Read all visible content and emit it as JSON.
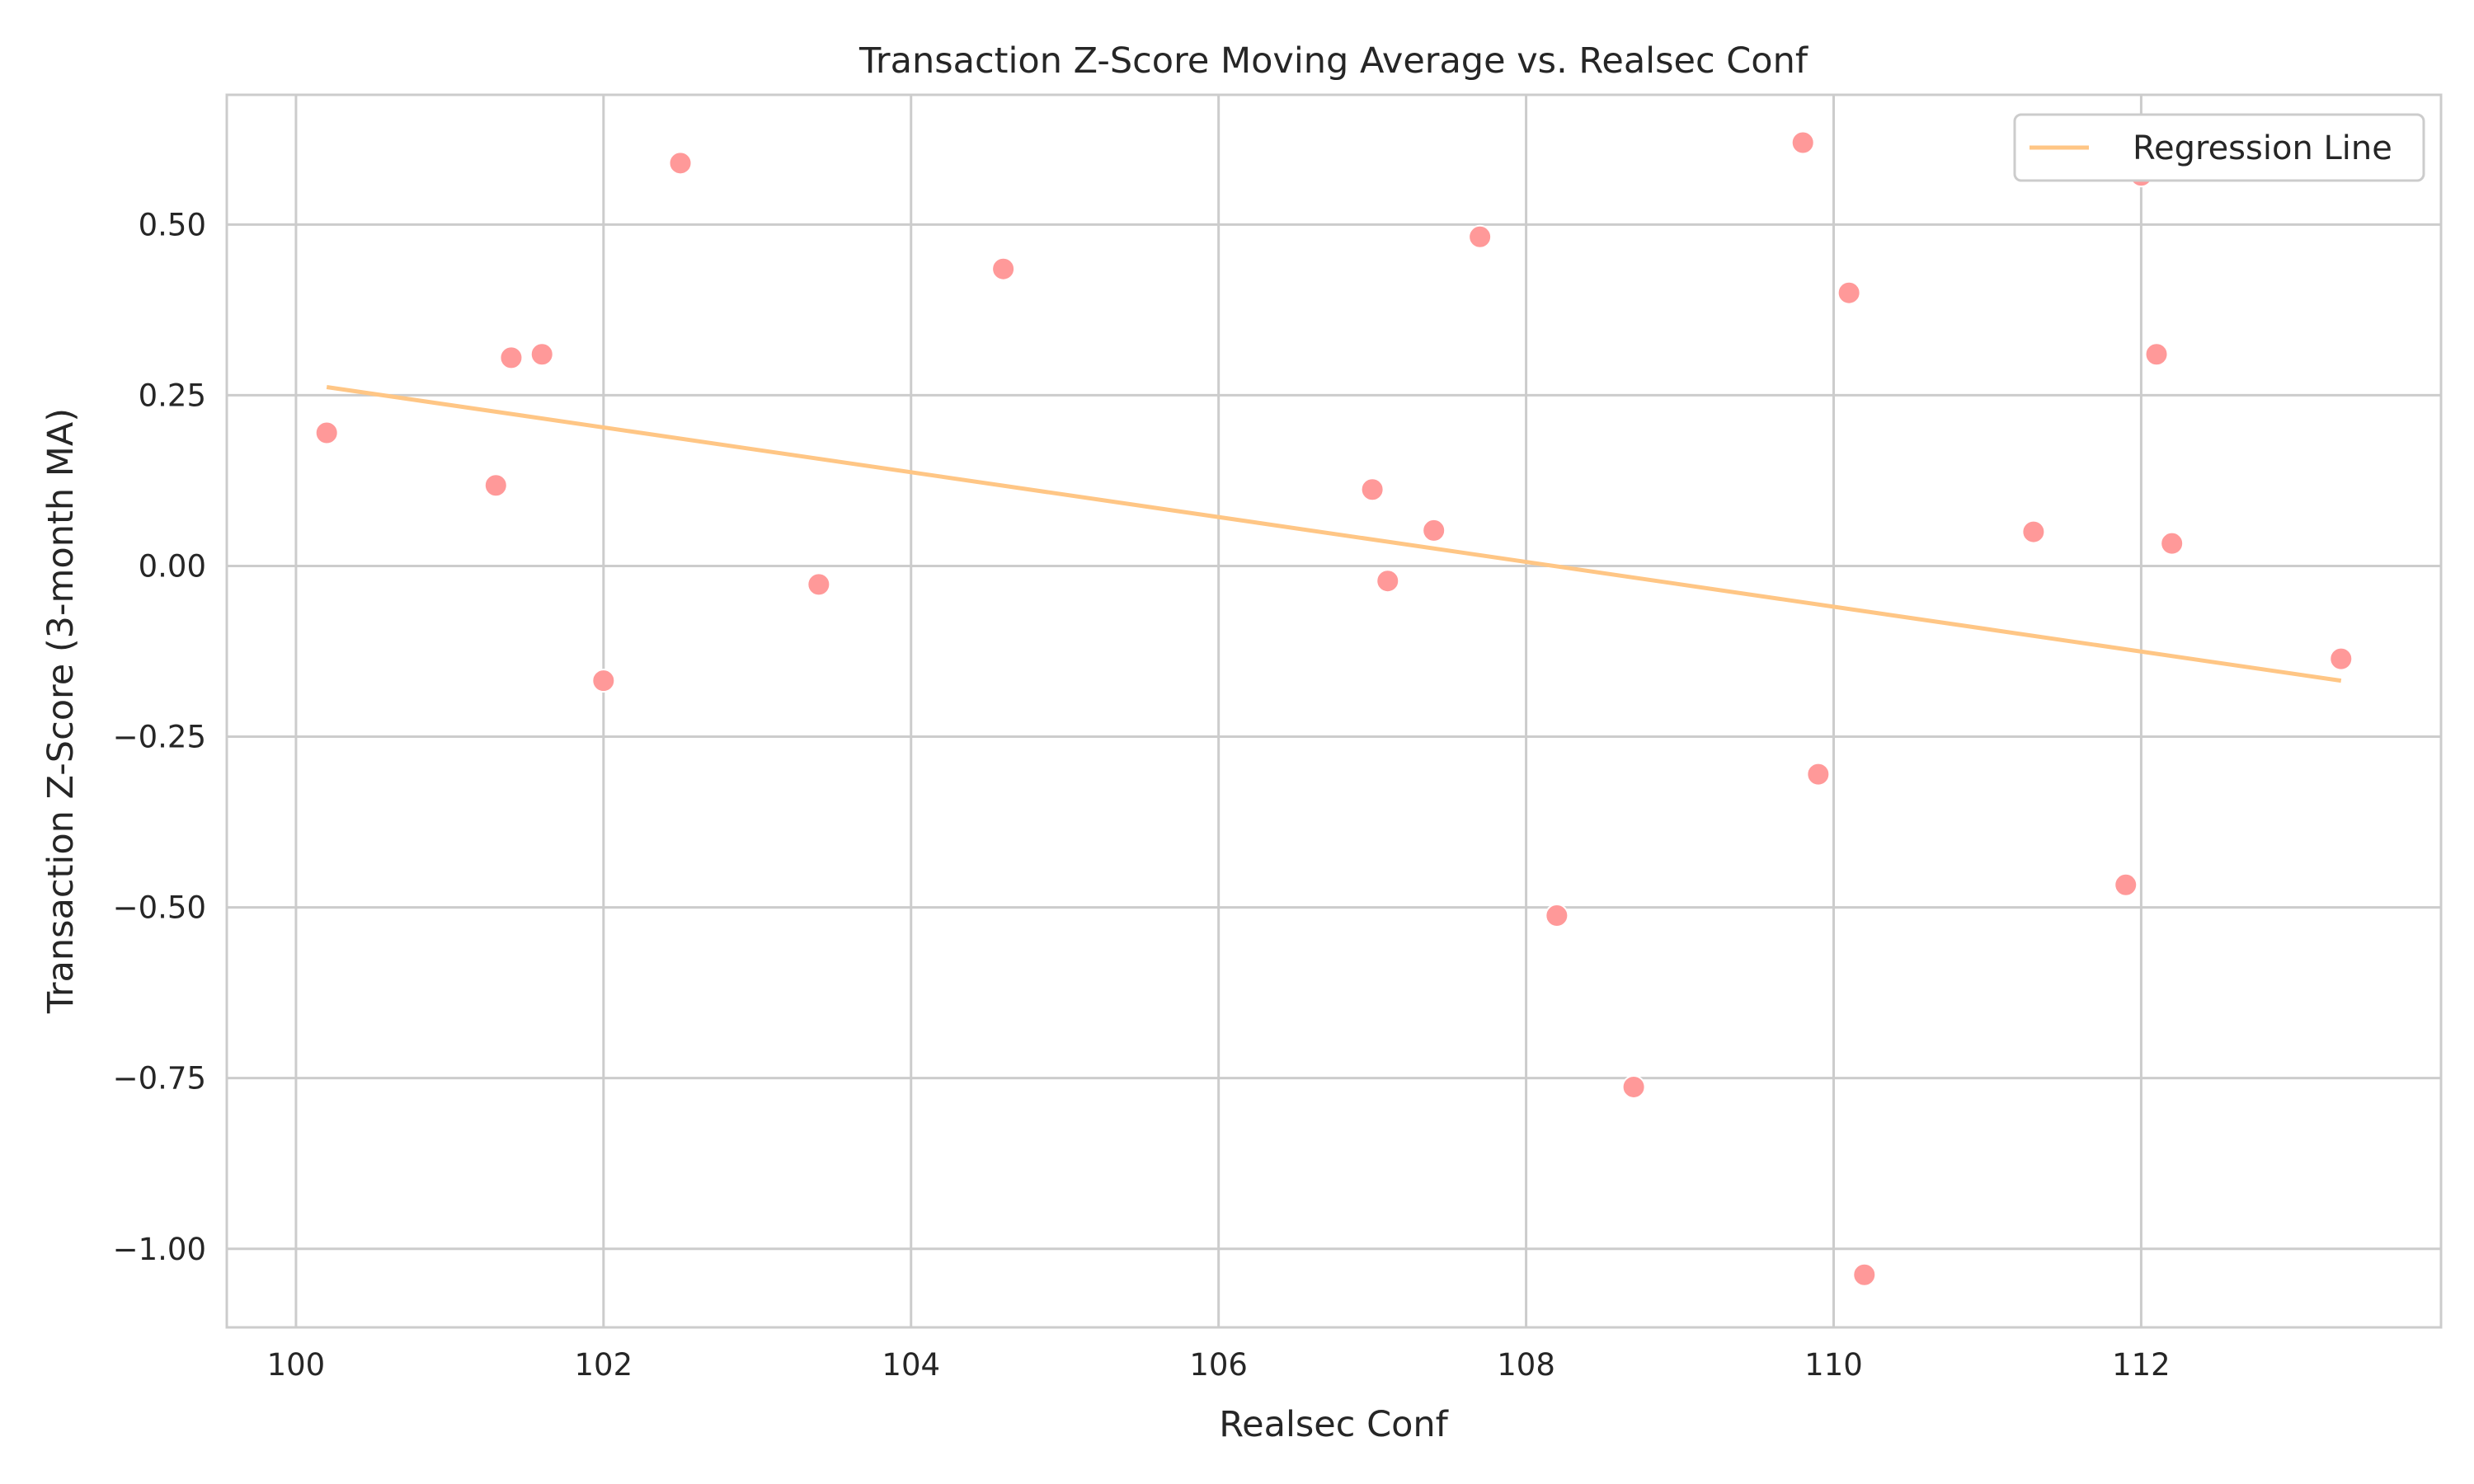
{
  "chart_data": {
    "type": "scatter",
    "title": "Transaction Z-Score Moving Average vs. Realsec Conf",
    "xlabel": "Realsec Conf",
    "ylabel": "Transaction Z-Score (3-month MA)",
    "xlim": [
      99.55,
      113.95
    ],
    "ylim": [
      -1.115,
      0.69
    ],
    "x_ticks": [
      100,
      102,
      104,
      106,
      108,
      110,
      112
    ],
    "x_tick_labels": [
      "100",
      "102",
      "104",
      "106",
      "108",
      "110",
      "112"
    ],
    "y_ticks": [
      -1.0,
      -0.75,
      -0.5,
      -0.25,
      0.0,
      0.25,
      0.5
    ],
    "y_tick_labels": [
      "−1.00",
      "−0.75",
      "−0.50",
      "−0.25",
      "0.00",
      "0.25",
      "0.50"
    ],
    "grid": true,
    "legend": {
      "placement": "top-right",
      "entries": [
        "Regression Line"
      ]
    },
    "colors": {
      "points": "#ff9999",
      "regression": "#ffc685",
      "grid": "#cccccc",
      "text": "#262626"
    },
    "points": [
      {
        "x": 100.2,
        "y": 0.195
      },
      {
        "x": 101.3,
        "y": 0.118
      },
      {
        "x": 101.4,
        "y": 0.305
      },
      {
        "x": 101.6,
        "y": 0.31
      },
      {
        "x": 102.0,
        "y": -0.168
      },
      {
        "x": 102.5,
        "y": 0.59
      },
      {
        "x": 103.4,
        "y": -0.027
      },
      {
        "x": 104.6,
        "y": 0.435
      },
      {
        "x": 107.0,
        "y": 0.112
      },
      {
        "x": 107.1,
        "y": -0.022
      },
      {
        "x": 107.4,
        "y": 0.052
      },
      {
        "x": 107.7,
        "y": 0.482
      },
      {
        "x": 108.2,
        "y": -0.512
      },
      {
        "x": 108.7,
        "y": -0.763
      },
      {
        "x": 109.8,
        "y": 0.62
      },
      {
        "x": 109.9,
        "y": -0.305
      },
      {
        "x": 110.1,
        "y": 0.4
      },
      {
        "x": 110.2,
        "y": -1.038
      },
      {
        "x": 111.3,
        "y": 0.05
      },
      {
        "x": 111.9,
        "y": -0.467
      },
      {
        "x": 112.0,
        "y": 0.572
      },
      {
        "x": 112.1,
        "y": 0.31
      },
      {
        "x": 112.2,
        "y": 0.033
      },
      {
        "x": 113.3,
        "y": -0.136
      }
    ],
    "regression": {
      "name": "Regression Line",
      "x": [
        100.2,
        113.3
      ],
      "y": [
        0.262,
        -0.168
      ]
    }
  }
}
